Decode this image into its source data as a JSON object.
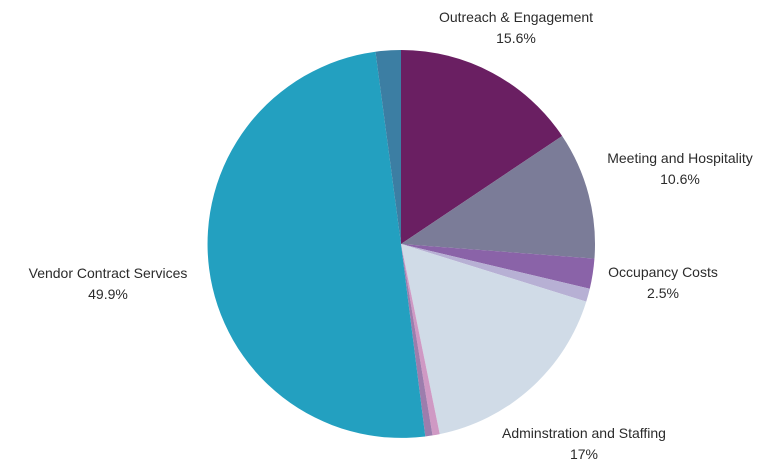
{
  "chart_data": {
    "type": "pie",
    "title": "",
    "start_angle_deg": 0,
    "direction": "clockwise",
    "slices": [
      {
        "label": "Outreach & Engagement",
        "value_label": "15.6%",
        "value": 15.6,
        "color": "#6a1f62"
      },
      {
        "label": "Meeting and Hospitality",
        "value_label": "10.6%",
        "value": 10.6,
        "color": "#7b7c98"
      },
      {
        "label": "Occupancy Costs",
        "value_label": "2.5%",
        "value": 2.5,
        "color": "#8a63a8"
      },
      {
        "label": "",
        "value_label": "",
        "value": 1.1,
        "color": "#b7b0d4"
      },
      {
        "label": "Adminstration and Staffing",
        "value_label": "17%",
        "value": 17.0,
        "color": "#d0dbe7"
      },
      {
        "label": "",
        "value_label": "",
        "value": 0.6,
        "color": "#cf99c4"
      },
      {
        "label": "",
        "value_label": "",
        "value": 0.6,
        "color": "#9c7dad"
      },
      {
        "label": "Vendor Contract Services",
        "value_label": "49.9%",
        "value": 49.9,
        "color": "#23a0c0"
      },
      {
        "label": "",
        "value_label": "",
        "value": 2.1,
        "color": "#3c7ea3"
      }
    ]
  }
}
